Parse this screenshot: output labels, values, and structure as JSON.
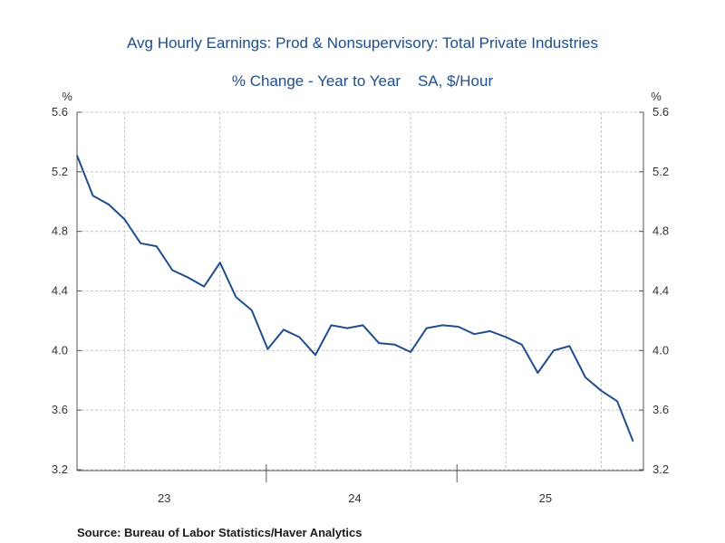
{
  "chart_data": {
    "type": "line",
    "title": "Avg Hourly Earnings: Prod & Nonsupervisory: Total Private Industries",
    "subtitle": "% Change - Year to Year    SA, $/Hour",
    "ylabel_left": "%",
    "ylabel_right": "%",
    "ylim": [
      3.2,
      5.6
    ],
    "yticks": [
      5.6,
      5.2,
      4.8,
      4.4,
      4.0,
      3.6,
      3.2
    ],
    "ytick_labels": [
      "5.6",
      "5.2",
      "4.8",
      "4.4",
      "4.0",
      "3.6",
      "3.2"
    ],
    "x_year_labels": [
      "23",
      "24",
      "25"
    ],
    "grid": true,
    "series": [
      {
        "name": "Avg Hourly Earnings % YoY",
        "color": "#1f4e8c",
        "x": [
          "2023-01",
          "2023-02",
          "2023-03",
          "2023-04",
          "2023-05",
          "2023-06",
          "2023-07",
          "2023-08",
          "2023-09",
          "2023-10",
          "2023-11",
          "2023-12",
          "2024-01",
          "2024-02",
          "2024-03",
          "2024-04",
          "2024-05",
          "2024-06",
          "2024-07",
          "2024-08",
          "2024-09",
          "2024-10",
          "2024-11",
          "2024-12",
          "2025-01",
          "2025-02",
          "2025-03",
          "2025-04",
          "2025-05",
          "2025-06",
          "2025-07",
          "2025-08",
          "2025-09",
          "2025-10",
          "2025-11",
          "2025-12"
        ],
        "values": [
          5.31,
          5.04,
          4.98,
          4.88,
          4.72,
          4.7,
          4.54,
          4.49,
          4.43,
          4.59,
          4.36,
          4.27,
          4.01,
          4.14,
          4.09,
          3.97,
          4.17,
          4.15,
          4.17,
          4.05,
          4.04,
          3.99,
          4.15,
          4.17,
          4.16,
          4.11,
          4.13,
          4.09,
          4.04,
          3.85,
          4.0,
          4.03,
          3.82,
          3.73,
          3.66,
          3.39
        ]
      }
    ]
  },
  "footer": {
    "source": "Source:  Bureau of Labor Statistics/Haver Analytics"
  }
}
